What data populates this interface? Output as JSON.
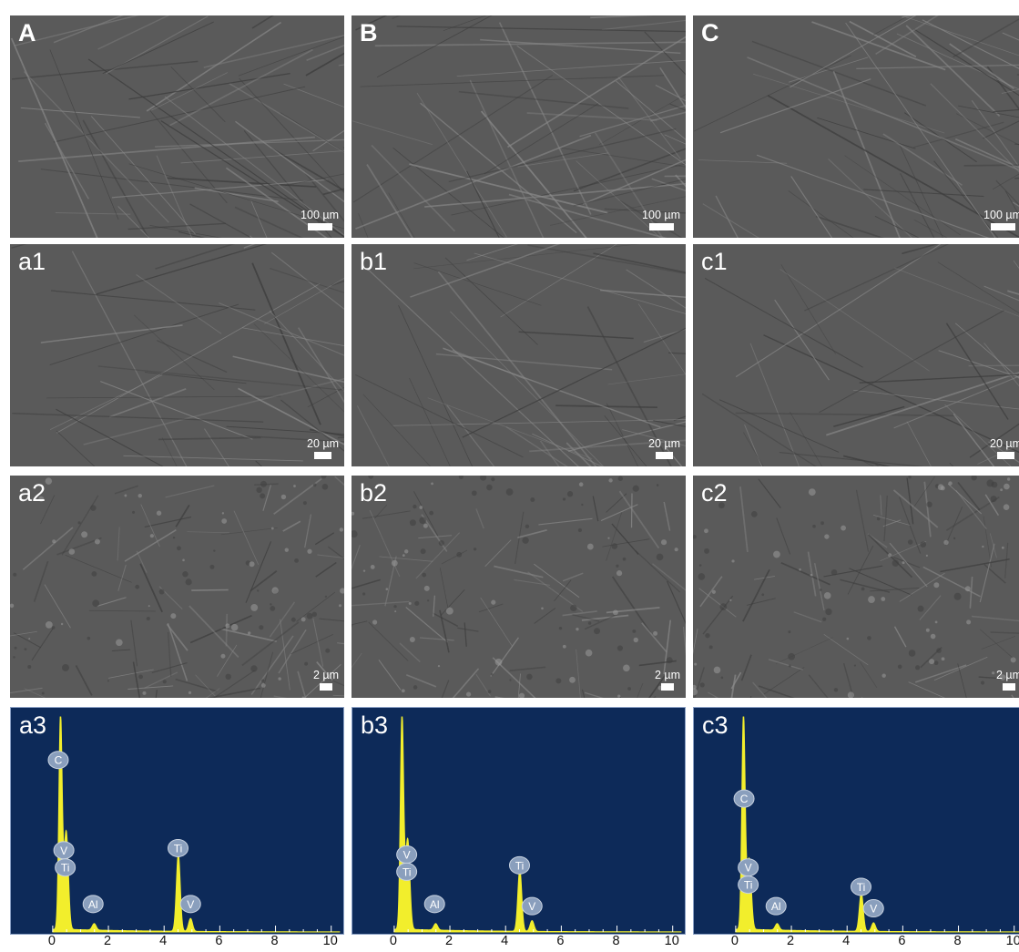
{
  "colors": {
    "sem_base": "#5a5a5a",
    "eds_background": "#0d2a59",
    "eds_spectrum": "#f2ee2c",
    "eds_peak_label": "#8a9fbd"
  },
  "rows": [
    {
      "type": "sem",
      "panels": [
        {
          "label": "A",
          "scale": "100 µm"
        },
        {
          "label": "B",
          "scale": "100 µm"
        },
        {
          "label": "C",
          "scale": "100 µm"
        }
      ]
    },
    {
      "type": "sem",
      "panels": [
        {
          "label": "a1",
          "scale": "20 µm"
        },
        {
          "label": "b1",
          "scale": "20 µm"
        },
        {
          "label": "c1",
          "scale": "20 µm"
        }
      ]
    },
    {
      "type": "sem",
      "panels": [
        {
          "label": "a2",
          "scale": "2 µm"
        },
        {
          "label": "b2",
          "scale": "2 µm"
        },
        {
          "label": "c2",
          "scale": "2 µm"
        }
      ]
    }
  ],
  "chart_data": [
    {
      "type": "area",
      "panel_label": "a3",
      "xlim": [
        -1.5,
        10.5
      ],
      "x_ticks": [
        "0",
        "2",
        "4",
        "6",
        "8",
        "10"
      ],
      "peaks": [
        {
          "element": "C",
          "x": 0.28,
          "height": 1.0
        },
        {
          "element": "V",
          "x": 0.51,
          "height": 0.28
        },
        {
          "element": "Ti",
          "x": 0.45,
          "height": 0.22
        },
        {
          "element": "Al",
          "x": 1.49,
          "height": 0.03
        },
        {
          "element": "Ti",
          "x": 4.51,
          "height": 0.36
        },
        {
          "element": "V",
          "x": 4.95,
          "height": 0.06
        }
      ],
      "labels": [
        {
          "element": "C",
          "x": 0.2,
          "level": 0.8
        },
        {
          "element": "V",
          "x": 0.4,
          "level": 0.38
        },
        {
          "element": "Ti",
          "x": 0.45,
          "level": 0.3
        },
        {
          "element": "Al",
          "x": 1.45,
          "level": 0.13
        },
        {
          "element": "Ti",
          "x": 4.5,
          "level": 0.39
        },
        {
          "element": "V",
          "x": 4.95,
          "level": 0.13
        }
      ]
    },
    {
      "type": "area",
      "panel_label": "b3",
      "xlim": [
        -1.5,
        10.5
      ],
      "x_ticks": [
        "0",
        "2",
        "4",
        "6",
        "8",
        "10"
      ],
      "peaks": [
        {
          "element": "C",
          "x": 0.28,
          "height": 1.0
        },
        {
          "element": "V",
          "x": 0.51,
          "height": 0.26
        },
        {
          "element": "Ti",
          "x": 0.45,
          "height": 0.2
        },
        {
          "element": "Al",
          "x": 1.49,
          "height": 0.03
        },
        {
          "element": "Ti",
          "x": 4.51,
          "height": 0.29
        },
        {
          "element": "V",
          "x": 4.95,
          "height": 0.05
        }
      ],
      "labels": [
        {
          "element": "V",
          "x": 0.45,
          "level": 0.36
        },
        {
          "element": "Ti",
          "x": 0.45,
          "level": 0.28
        },
        {
          "element": "Al",
          "x": 1.45,
          "level": 0.13
        },
        {
          "element": "Ti",
          "x": 4.5,
          "level": 0.31
        },
        {
          "element": "V",
          "x": 4.95,
          "level": 0.12
        }
      ]
    },
    {
      "type": "area",
      "panel_label": "c3",
      "xlim": [
        -1.5,
        10.5
      ],
      "x_ticks": [
        "0",
        "2",
        "4",
        "6",
        "8",
        "10"
      ],
      "peaks": [
        {
          "element": "C",
          "x": 0.28,
          "height": 1.0
        },
        {
          "element": "V",
          "x": 0.51,
          "height": 0.2
        },
        {
          "element": "Ti",
          "x": 0.45,
          "height": 0.16
        },
        {
          "element": "Al",
          "x": 1.49,
          "height": 0.03
        },
        {
          "element": "Ti",
          "x": 4.51,
          "height": 0.18
        },
        {
          "element": "V",
          "x": 4.95,
          "height": 0.04
        }
      ],
      "labels": [
        {
          "element": "C",
          "x": 0.3,
          "level": 0.62
        },
        {
          "element": "V",
          "x": 0.45,
          "level": 0.3
        },
        {
          "element": "Ti",
          "x": 0.45,
          "level": 0.22
        },
        {
          "element": "Al",
          "x": 1.45,
          "level": 0.12
        },
        {
          "element": "Ti",
          "x": 4.5,
          "level": 0.21
        },
        {
          "element": "V",
          "x": 4.95,
          "level": 0.11
        }
      ]
    }
  ]
}
